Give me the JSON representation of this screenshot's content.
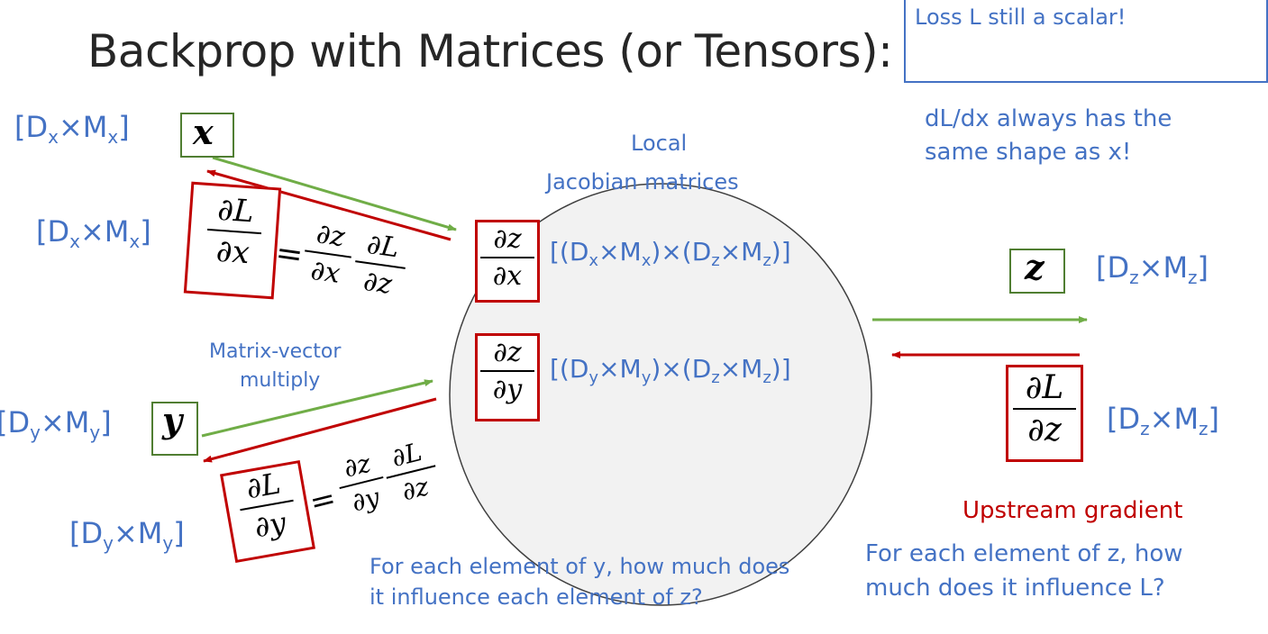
{
  "title": "Backprop with Matrices (or Tensors):",
  "callout": {
    "box_text": "Loss L still a scalar!",
    "note_line1": "dL/dx always has the",
    "note_line2": "same shape as x!"
  },
  "node": {
    "title_line1": "Local",
    "title_line2": "Jacobian matrices"
  },
  "variables": {
    "x": "x",
    "y": "y",
    "z": "z"
  },
  "shapes": {
    "x_D": "D",
    "x_D_sub": "x",
    "x_M": "M",
    "x_M_sub": "x",
    "y_D": "D",
    "y_D_sub": "y",
    "y_M": "M",
    "y_M_sub": "y",
    "z_D": "D",
    "z_D_sub": "z",
    "z_M": "M",
    "z_M_sub": "z"
  },
  "math": {
    "dL": "∂L",
    "dx": "∂x",
    "dy": "∂y",
    "dz": "∂z",
    "dz_num": "∂z",
    "equals": "="
  },
  "labels": {
    "matrix_vector_line1": "Matrix-vector",
    "matrix_vector_line2": "multiply",
    "upstream": "Upstream gradient",
    "z_question_line1": "For each element of z, how",
    "z_question_line2": "much does it influence L?",
    "y_question_line1": "For each element of y, how much does",
    "y_question_line2": "it influence each element of z?"
  },
  "colors": {
    "forward_arrow": "#70ad47",
    "backward_arrow": "#c00000",
    "text_blue": "#4472c4",
    "node_fill": "#f2f2f2"
  }
}
